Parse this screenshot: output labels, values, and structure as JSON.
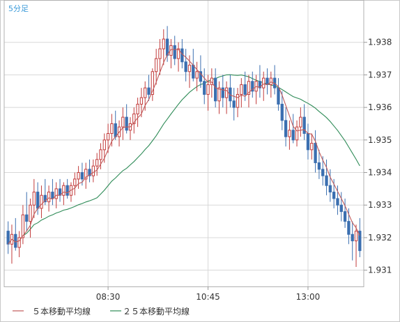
{
  "chart_data": {
    "type": "candlestick",
    "timeframe_label": "5分足",
    "x_ticks": [
      "08:30",
      "10:45",
      "13:00"
    ],
    "y_ticks": [
      "1.938",
      "1.937",
      "1.936",
      "1.935",
      "1.934",
      "1.933",
      "1.932",
      "1.931"
    ],
    "ylim": [
      1.9305,
      1.9393
    ],
    "grid": true,
    "legend_position": "bottom",
    "colors": {
      "up": "#c23b3b",
      "down": "#3b6fb0",
      "ma5": "#c05a5a",
      "ma25": "#2e8b57",
      "grid": "#d8d8d8",
      "timeframe": "#3a9ad9"
    },
    "legend": [
      {
        "label": "５本移動平均線",
        "color": "#c05a5a"
      },
      {
        "label": "２５本移動平均線",
        "color": "#2e8b57"
      }
    ],
    "candles": [
      [
        1.9322,
        1.9325,
        1.9315,
        1.9318
      ],
      [
        1.9318,
        1.9324,
        1.9312,
        1.9321
      ],
      [
        1.9321,
        1.9326,
        1.9316,
        1.9317
      ],
      [
        1.9317,
        1.9322,
        1.9314,
        1.932
      ],
      [
        1.932,
        1.933,
        1.9318,
        1.9327
      ],
      [
        1.9327,
        1.9334,
        1.9322,
        1.9325
      ],
      [
        1.9325,
        1.9332,
        1.932,
        1.933
      ],
      [
        1.933,
        1.9338,
        1.9326,
        1.9334
      ],
      [
        1.9334,
        1.9337,
        1.9327,
        1.9329
      ],
      [
        1.9329,
        1.9336,
        1.9326,
        1.9333
      ],
      [
        1.9333,
        1.9338,
        1.933,
        1.9331
      ],
      [
        1.9331,
        1.9336,
        1.9328,
        1.9334
      ],
      [
        1.9334,
        1.9338,
        1.933,
        1.9332
      ],
      [
        1.9332,
        1.9337,
        1.9329,
        1.9335
      ],
      [
        1.9335,
        1.9338,
        1.9331,
        1.9333
      ],
      [
        1.9333,
        1.9337,
        1.933,
        1.9336
      ],
      [
        1.9336,
        1.9338,
        1.9332,
        1.9333
      ],
      [
        1.9333,
        1.9337,
        1.9331,
        1.9336
      ],
      [
        1.9336,
        1.934,
        1.9333,
        1.9338
      ],
      [
        1.9338,
        1.9342,
        1.9335,
        1.934
      ],
      [
        1.934,
        1.9343,
        1.9336,
        1.9338
      ],
      [
        1.9338,
        1.9343,
        1.9335,
        1.9341
      ],
      [
        1.9341,
        1.9344,
        1.9337,
        1.9339
      ],
      [
        1.9339,
        1.9344,
        1.9337,
        1.9342
      ],
      [
        1.9342,
        1.9346,
        1.9339,
        1.9344
      ],
      [
        1.9344,
        1.9349,
        1.9341,
        1.9347
      ],
      [
        1.9347,
        1.9352,
        1.9343,
        1.935
      ],
      [
        1.935,
        1.9355,
        1.9346,
        1.9352
      ],
      [
        1.9352,
        1.9358,
        1.9348,
        1.9355
      ],
      [
        1.9355,
        1.9359,
        1.935,
        1.9351
      ],
      [
        1.9351,
        1.9356,
        1.9348,
        1.9354
      ],
      [
        1.9354,
        1.936,
        1.935,
        1.9357
      ],
      [
        1.9357,
        1.9361,
        1.9352,
        1.9353
      ],
      [
        1.9353,
        1.9357,
        1.935,
        1.9355
      ],
      [
        1.9355,
        1.936,
        1.9352,
        1.9358
      ],
      [
        1.9358,
        1.9363,
        1.9354,
        1.9361
      ],
      [
        1.9361,
        1.9366,
        1.9357,
        1.9363
      ],
      [
        1.9363,
        1.9368,
        1.9359,
        1.9366
      ],
      [
        1.9366,
        1.937,
        1.9362,
        1.9364
      ],
      [
        1.9364,
        1.9372,
        1.9362,
        1.9371
      ],
      [
        1.9371,
        1.9378,
        1.9367,
        1.9375
      ],
      [
        1.9375,
        1.9381,
        1.937,
        1.9378
      ],
      [
        1.9378,
        1.9384,
        1.9373,
        1.9381
      ],
      [
        1.9381,
        1.9385,
        1.9374,
        1.9376
      ],
      [
        1.9376,
        1.9381,
        1.9372,
        1.9379
      ],
      [
        1.9379,
        1.9382,
        1.9373,
        1.9375
      ],
      [
        1.9375,
        1.938,
        1.9371,
        1.9378
      ],
      [
        1.9378,
        1.9381,
        1.9372,
        1.9374
      ],
      [
        1.9374,
        1.9378,
        1.9368,
        1.9371
      ],
      [
        1.9371,
        1.9376,
        1.9366,
        1.9373
      ],
      [
        1.9373,
        1.9378,
        1.9368,
        1.9369
      ],
      [
        1.9369,
        1.9374,
        1.9365,
        1.9371
      ],
      [
        1.9371,
        1.9376,
        1.9366,
        1.9368
      ],
      [
        1.9368,
        1.9372,
        1.9361,
        1.9364
      ],
      [
        1.9364,
        1.937,
        1.9359,
        1.9367
      ],
      [
        1.9367,
        1.9372,
        1.9363,
        1.9369
      ],
      [
        1.9369,
        1.9372,
        1.936,
        1.9362
      ],
      [
        1.9362,
        1.9368,
        1.9358,
        1.9366
      ],
      [
        1.9366,
        1.937,
        1.936,
        1.9363
      ],
      [
        1.9363,
        1.9368,
        1.9358,
        1.9366
      ],
      [
        1.9366,
        1.937,
        1.936,
        1.9362
      ],
      [
        1.9362,
        1.9366,
        1.9356,
        1.936
      ],
      [
        1.936,
        1.9366,
        1.9357,
        1.9364
      ],
      [
        1.9364,
        1.9369,
        1.936,
        1.9367
      ],
      [
        1.9367,
        1.9371,
        1.9362,
        1.9364
      ],
      [
        1.9364,
        1.937,
        1.936,
        1.9368
      ],
      [
        1.9368,
        1.9371,
        1.9363,
        1.9365
      ],
      [
        1.9365,
        1.937,
        1.9361,
        1.9368
      ],
      [
        1.9368,
        1.9373,
        1.9363,
        1.9366
      ],
      [
        1.9366,
        1.9371,
        1.9362,
        1.9369
      ],
      [
        1.9369,
        1.9372,
        1.9364,
        1.9367
      ],
      [
        1.9367,
        1.9371,
        1.9363,
        1.9369
      ],
      [
        1.9369,
        1.9373,
        1.9364,
        1.9366
      ],
      [
        1.9366,
        1.9369,
        1.9359,
        1.9361
      ],
      [
        1.9361,
        1.9365,
        1.9353,
        1.9356
      ],
      [
        1.9356,
        1.936,
        1.9348,
        1.9351
      ],
      [
        1.9351,
        1.9356,
        1.9347,
        1.9353
      ],
      [
        1.9353,
        1.9358,
        1.9349,
        1.935
      ],
      [
        1.935,
        1.9356,
        1.9348,
        1.9354
      ],
      [
        1.9354,
        1.936,
        1.9351,
        1.9357
      ],
      [
        1.9357,
        1.9361,
        1.935,
        1.9352
      ],
      [
        1.9352,
        1.9355,
        1.9344,
        1.9347
      ],
      [
        1.9347,
        1.9352,
        1.9344,
        1.9349
      ],
      [
        1.9349,
        1.9353,
        1.934,
        1.9343
      ],
      [
        1.9343,
        1.9347,
        1.9338,
        1.9341
      ],
      [
        1.9341,
        1.9345,
        1.9336,
        1.9339
      ],
      [
        1.9339,
        1.9344,
        1.9333,
        1.9336
      ],
      [
        1.9336,
        1.9341,
        1.9331,
        1.9334
      ],
      [
        1.9334,
        1.9338,
        1.9329,
        1.9332
      ],
      [
        1.9332,
        1.9336,
        1.9327,
        1.933
      ],
      [
        1.933,
        1.9334,
        1.9325,
        1.9328
      ],
      [
        1.9328,
        1.9332,
        1.9323,
        1.9325
      ],
      [
        1.9325,
        1.9329,
        1.9318,
        1.9321
      ],
      [
        1.9321,
        1.9325,
        1.9313,
        1.9319
      ],
      [
        1.9319,
        1.9324,
        1.9311,
        1.9322
      ],
      [
        1.9322,
        1.9326,
        1.9314,
        1.9316
      ]
    ]
  }
}
